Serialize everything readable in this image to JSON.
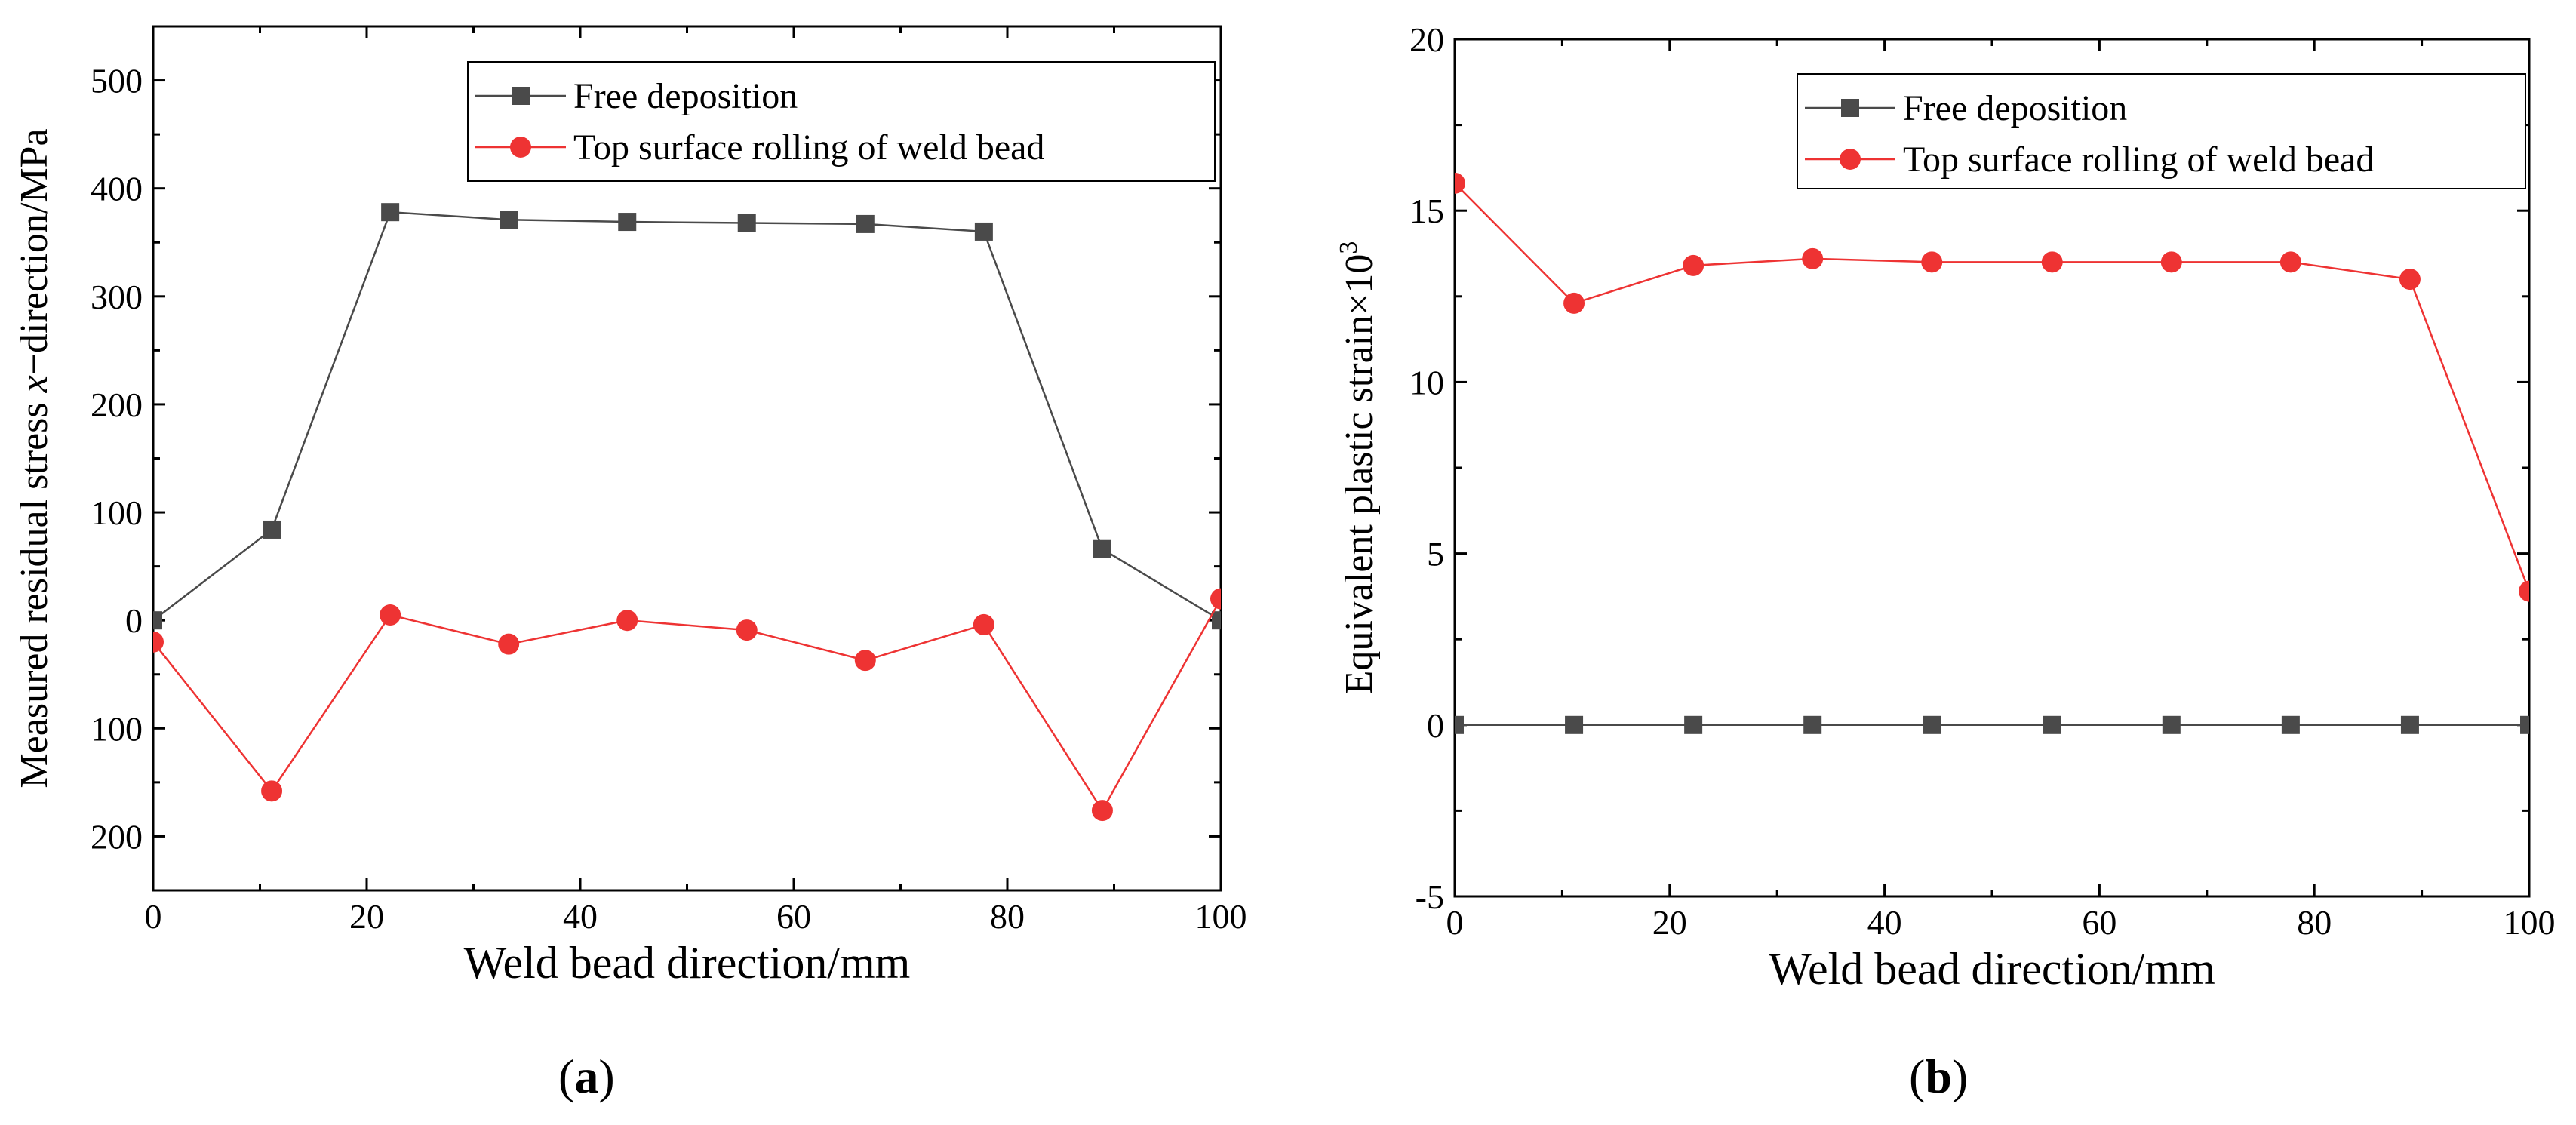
{
  "chart_data": [
    {
      "type": "line",
      "panel_label": "a",
      "title": "",
      "xlabel": "Weld bead direction/mm",
      "ylabel_prefix": "Measured residual stress ",
      "ylabel_var": "x",
      "ylabel_suffix": "−direction/MPa",
      "xlim": [
        0,
        100
      ],
      "ylim": [
        -250,
        550
      ],
      "xticks": [
        0,
        20,
        40,
        60,
        80,
        100
      ],
      "yticks": [
        -200,
        -100,
        0,
        100,
        200,
        300,
        400,
        500
      ],
      "ytick_labels": [
        "200",
        "100",
        "0",
        "100",
        "200",
        "300",
        "400",
        "500"
      ],
      "legend_position": "top-right",
      "series": [
        {
          "name": "Free deposition",
          "marker": "square",
          "color": "#4a4a4a",
          "x": [
            0,
            11.1,
            22.2,
            33.3,
            44.4,
            55.6,
            66.7,
            77.8,
            88.9,
            100
          ],
          "values": [
            0,
            84,
            378,
            371,
            369,
            368,
            367,
            360,
            66,
            0
          ]
        },
        {
          "name": "Top surface rolling of weld bead",
          "marker": "circle",
          "color": "#ee3333",
          "x": [
            0,
            11.1,
            22.2,
            33.3,
            44.4,
            55.6,
            66.7,
            77.8,
            88.9,
            100
          ],
          "values": [
            -20,
            -158,
            5,
            -22,
            0,
            -9,
            -37,
            -4,
            -176,
            20
          ]
        }
      ]
    },
    {
      "type": "line",
      "panel_label": "b",
      "title": "",
      "xlabel": "Weld bead direction/mm",
      "ylabel_prefix": "Equivalent plastic strain×10",
      "ylabel_sup": "3",
      "xlim": [
        0,
        100
      ],
      "ylim": [
        -5,
        20
      ],
      "xticks": [
        0,
        20,
        40,
        60,
        80,
        100
      ],
      "yticks": [
        -5,
        0,
        5,
        10,
        15,
        20
      ],
      "ytick_labels": [
        "-5",
        "0",
        "5",
        "10",
        "15",
        "20"
      ],
      "legend_position": "top-right",
      "series": [
        {
          "name": "Free deposition",
          "marker": "square",
          "color": "#4a4a4a",
          "x": [
            0,
            11.1,
            22.2,
            33.3,
            44.4,
            55.6,
            66.7,
            77.8,
            88.9,
            100
          ],
          "values": [
            0,
            0,
            0,
            0,
            0,
            0,
            0,
            0,
            0,
            0
          ]
        },
        {
          "name": "Top surface rolling of weld bead",
          "marker": "circle",
          "color": "#ee3333",
          "x": [
            0,
            11.1,
            22.2,
            33.3,
            44.4,
            55.6,
            66.7,
            77.8,
            88.9,
            100
          ],
          "values": [
            15.8,
            12.3,
            13.4,
            13.6,
            13.5,
            13.5,
            13.5,
            13.5,
            13.0,
            3.9
          ]
        }
      ]
    }
  ]
}
